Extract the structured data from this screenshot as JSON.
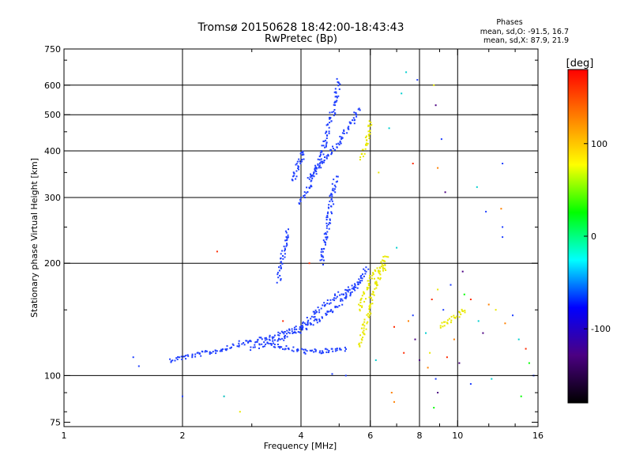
{
  "chart_data": {
    "type": "scatter",
    "title": "Tromsø 20150628 18:42:00-18:43:43",
    "subtitle": "RwPretec (Bp)",
    "xlabel": "Frequency [MHz]",
    "ylabel": "Stationary phase Virtual Height [km]",
    "xscale": "log",
    "yscale": "log",
    "xlim": [
      1,
      16
    ],
    "ylim": [
      73,
      750
    ],
    "xticks": [
      1,
      2,
      4,
      6,
      8,
      10,
      16
    ],
    "xtick_labels": [
      "1",
      "2",
      "4",
      "6",
      "8",
      "10",
      "16"
    ],
    "yticks": [
      75,
      100,
      200,
      300,
      400,
      500,
      600,
      750
    ],
    "ytick_labels": [
      "75",
      "100",
      "200",
      "300",
      "400",
      "500",
      "600",
      "750"
    ],
    "xgrid": [
      2,
      4,
      6,
      8,
      10
    ],
    "ygrid": [
      100,
      200,
      300,
      400,
      500,
      600
    ],
    "legend": {
      "heading": "Phases",
      "o_line": "mean, sd,O: -91.5, 16.7",
      "x_line": "mean, sd,X:  87.9, 21.9"
    },
    "colorbar": {
      "label": "[deg]",
      "range": [
        -180,
        180
      ],
      "ticks": [
        100,
        0,
        -100
      ],
      "tick_labels": [
        "100",
        "0",
        "-100"
      ],
      "stops": [
        "#000000",
        "#4b0082",
        "#0000ff",
        "#00ffff",
        "#00ff00",
        "#ffff00",
        "#ff8000",
        "#ff0000"
      ]
    },
    "series": [
      {
        "name": "O-mode traces (blue, ~-100 deg)",
        "color": "#1f3fff",
        "segments": [
          {
            "x": [
              1.85,
              2.0,
              2.2,
              2.5,
              2.8,
              3.2,
              3.6,
              4.0,
              4.3,
              4.6,
              5.0,
              5.4,
              5.7,
              5.9
            ],
            "y": [
              110,
              112,
              114,
              117,
              122,
              125,
              130,
              136,
              145,
              155,
              165,
              172,
              180,
              195
            ]
          },
          {
            "x": [
              3.0,
              3.5,
              4.0,
              4.4,
              4.8,
              5.2,
              5.6
            ],
            "y": [
              118,
              125,
              132,
              140,
              150,
              162,
              178
            ]
          },
          {
            "x": [
              3.3,
              3.7,
              4.1,
              4.5,
              4.9,
              5.2
            ],
            "y": [
              122,
              118,
              116,
              116,
              117,
              118
            ]
          },
          {
            "x": [
              4.0,
              4.2,
              4.4,
              4.6,
              4.8,
              5.0
            ],
            "y": [
              290,
              320,
              360,
              420,
              500,
              620
            ]
          },
          {
            "x": [
              4.2,
              4.4,
              4.6,
              4.8,
              5.0,
              5.2,
              5.4,
              5.6
            ],
            "y": [
              340,
              360,
              380,
              400,
              420,
              450,
              480,
              520
            ]
          },
          {
            "x": [
              3.8,
              3.9,
              4.0,
              4.1
            ],
            "y": [
              330,
              360,
              380,
              400
            ]
          },
          {
            "x": [
              4.5,
              4.6,
              4.7,
              4.8,
              4.9
            ],
            "y": [
              200,
              230,
              260,
              300,
              340
            ]
          },
          {
            "x": [
              3.5,
              3.6,
              3.7
            ],
            "y": [
              180,
              210,
              245
            ]
          }
        ]
      },
      {
        "name": "X-mode traces (yellow, ~+90 deg)",
        "color": "#e8e800",
        "segments": [
          {
            "x": [
              5.6,
              5.8,
              6.0,
              6.2,
              6.4,
              6.6
            ],
            "y": [
              120,
              135,
              155,
              175,
              190,
              200
            ]
          },
          {
            "x": [
              5.7,
              5.9,
              6.0
            ],
            "y": [
              380,
              430,
              480
            ]
          },
          {
            "x": [
              5.6,
              5.8,
              6.0,
              6.3,
              6.6
            ],
            "y": [
              150,
              165,
              180,
              195,
              210
            ]
          },
          {
            "x": [
              9.0,
              9.5,
              10.0,
              10.5
            ],
            "y": [
              135,
              140,
              145,
              150
            ]
          }
        ]
      },
      {
        "name": "scattered returns",
        "color": "mixed",
        "points": [
          {
            "x": 1.5,
            "y": 112,
            "color": "#1f3fff"
          },
          {
            "x": 1.55,
            "y": 106,
            "color": "#1f3fff"
          },
          {
            "x": 2.0,
            "y": 88,
            "color": "#1f3fff"
          },
          {
            "x": 2.55,
            "y": 88,
            "color": "#00bcbc"
          },
          {
            "x": 2.8,
            "y": 80,
            "color": "#e8e800"
          },
          {
            "x": 2.45,
            "y": 215,
            "color": "#ff2a00"
          },
          {
            "x": 6.8,
            "y": 90,
            "color": "#ff8000"
          },
          {
            "x": 7.4,
            "y": 650,
            "color": "#00cfcf"
          },
          {
            "x": 7.9,
            "y": 620,
            "color": "#1f3fff"
          },
          {
            "x": 7.2,
            "y": 570,
            "color": "#00cfcf"
          },
          {
            "x": 6.7,
            "y": 460,
            "color": "#00cfcf"
          },
          {
            "x": 8.7,
            "y": 600,
            "color": "#e8e800"
          },
          {
            "x": 8.8,
            "y": 530,
            "color": "#4b0082"
          },
          {
            "x": 9.1,
            "y": 430,
            "color": "#1f3fff"
          },
          {
            "x": 8.9,
            "y": 360,
            "color": "#ff8000"
          },
          {
            "x": 9.3,
            "y": 310,
            "color": "#4b0082"
          },
          {
            "x": 7.7,
            "y": 370,
            "color": "#ff2a00"
          },
          {
            "x": 6.3,
            "y": 350,
            "color": "#e8e800"
          },
          {
            "x": 13.0,
            "y": 370,
            "color": "#1f3fff"
          },
          {
            "x": 11.2,
            "y": 320,
            "color": "#00cfcf"
          },
          {
            "x": 12.9,
            "y": 280,
            "color": "#ff8000"
          },
          {
            "x": 11.8,
            "y": 275,
            "color": "#1f3fff"
          },
          {
            "x": 13.0,
            "y": 250,
            "color": "#1f3fff"
          },
          {
            "x": 13.0,
            "y": 235,
            "color": "#1f3fff"
          },
          {
            "x": 7.0,
            "y": 220,
            "color": "#00cfcf"
          },
          {
            "x": 6.9,
            "y": 135,
            "color": "#ff2a00"
          },
          {
            "x": 7.5,
            "y": 140,
            "color": "#ff8000"
          },
          {
            "x": 7.8,
            "y": 125,
            "color": "#4b0082"
          },
          {
            "x": 8.3,
            "y": 130,
            "color": "#00cfcf"
          },
          {
            "x": 8.6,
            "y": 160,
            "color": "#ff2a00"
          },
          {
            "x": 8.9,
            "y": 170,
            "color": "#e8e800"
          },
          {
            "x": 9.2,
            "y": 150,
            "color": "#1f3fff"
          },
          {
            "x": 9.8,
            "y": 125,
            "color": "#ff8000"
          },
          {
            "x": 10.4,
            "y": 165,
            "color": "#00ff00"
          },
          {
            "x": 10.8,
            "y": 160,
            "color": "#ff2a00"
          },
          {
            "x": 11.3,
            "y": 140,
            "color": "#00cfcf"
          },
          {
            "x": 11.6,
            "y": 130,
            "color": "#4b0082"
          },
          {
            "x": 12.5,
            "y": 150,
            "color": "#e8e800"
          },
          {
            "x": 13.2,
            "y": 138,
            "color": "#ff8000"
          },
          {
            "x": 13.8,
            "y": 145,
            "color": "#1f3fff"
          },
          {
            "x": 14.3,
            "y": 125,
            "color": "#00cfcf"
          },
          {
            "x": 14.9,
            "y": 118,
            "color": "#ff2a00"
          },
          {
            "x": 15.2,
            "y": 108,
            "color": "#00ff00"
          },
          {
            "x": 15.6,
            "y": 100,
            "color": "#1f3fff"
          },
          {
            "x": 8.0,
            "y": 110,
            "color": "#4b0082"
          },
          {
            "x": 8.4,
            "y": 105,
            "color": "#ff8000"
          },
          {
            "x": 8.8,
            "y": 98,
            "color": "#1f3fff"
          },
          {
            "x": 9.4,
            "y": 112,
            "color": "#ff2a00"
          },
          {
            "x": 10.1,
            "y": 108,
            "color": "#4b0082"
          },
          {
            "x": 10.8,
            "y": 95,
            "color": "#1f3fff"
          },
          {
            "x": 12.2,
            "y": 98,
            "color": "#00cfcf"
          },
          {
            "x": 14.5,
            "y": 88,
            "color": "#00ff00"
          },
          {
            "x": 8.9,
            "y": 90,
            "color": "#4b0082"
          },
          {
            "x": 8.7,
            "y": 82,
            "color": "#00ff00"
          },
          {
            "x": 6.9,
            "y": 85,
            "color": "#ff8000"
          },
          {
            "x": 6.2,
            "y": 110,
            "color": "#00cfcf"
          },
          {
            "x": 5.2,
            "y": 100,
            "color": "#1f3fff"
          },
          {
            "x": 4.8,
            "y": 101,
            "color": "#1f3fff"
          },
          {
            "x": 7.3,
            "y": 115,
            "color": "#ff2a00"
          },
          {
            "x": 7.7,
            "y": 145,
            "color": "#1f3fff"
          },
          {
            "x": 8.5,
            "y": 115,
            "color": "#e8e800"
          },
          {
            "x": 9.6,
            "y": 175,
            "color": "#1f3fff"
          },
          {
            "x": 10.3,
            "y": 190,
            "color": "#4b0082"
          },
          {
            "x": 12.0,
            "y": 155,
            "color": "#ff8000"
          },
          {
            "x": 4.2,
            "y": 200,
            "color": "#ff2a00"
          },
          {
            "x": 3.6,
            "y": 140,
            "color": "#ff2a00"
          }
        ]
      }
    ]
  }
}
